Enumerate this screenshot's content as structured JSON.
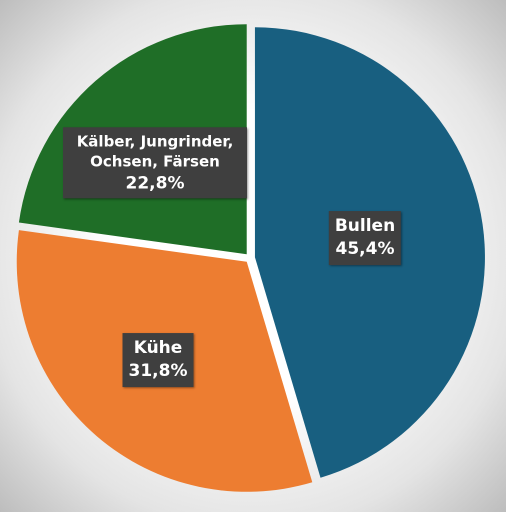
{
  "chart_data": {
    "type": "pie",
    "categories": [
      "Bullen",
      "Kühe",
      "Kälber, Jungrinder, Ochsen, Färsen"
    ],
    "values": [
      45.4,
      31.8,
      22.8
    ],
    "value_labels": [
      "45,4%",
      "31,8%",
      "22,8%"
    ],
    "colors": [
      "#185f80",
      "#ed7d31",
      "#1f6e27"
    ]
  }
}
